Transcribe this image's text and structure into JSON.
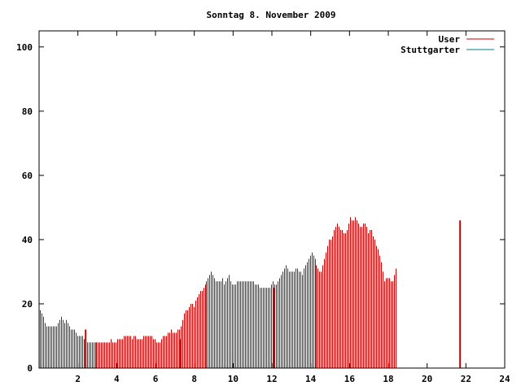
{
  "chart_data": {
    "type": "bar",
    "title": "Sonntag 8. November 2009",
    "xlabel": "",
    "ylabel": "",
    "xlim": [
      0,
      24
    ],
    "ylim": [
      0,
      105
    ],
    "x_ticks": [
      2,
      4,
      6,
      8,
      10,
      12,
      14,
      16,
      18,
      20,
      22,
      24
    ],
    "y_ticks": [
      0,
      20,
      40,
      60,
      80,
      100
    ],
    "legend_position": "top-right",
    "series": [
      {
        "name": "User",
        "color": "#cc0000",
        "x_start": 0.0,
        "x_step": 0.0833,
        "values": [
          18,
          17,
          16,
          14,
          13,
          13,
          13,
          13,
          13,
          13,
          13,
          14,
          15,
          16,
          15,
          14,
          15,
          14,
          13,
          12,
          12,
          12,
          11,
          10,
          10,
          10,
          10,
          9,
          8,
          8,
          8,
          8,
          8,
          8,
          8,
          8,
          8,
          8,
          8,
          8,
          8,
          8,
          8,
          8,
          9,
          8,
          8,
          8,
          9,
          9,
          9,
          9,
          10,
          10,
          10,
          10,
          10,
          9,
          10,
          10,
          9,
          9,
          9,
          9,
          10,
          10,
          10,
          10,
          10,
          10,
          9,
          9,
          8,
          8,
          8,
          9,
          10,
          10,
          10,
          11,
          11,
          12,
          11,
          11,
          11,
          12,
          12,
          13,
          15,
          17,
          18,
          18,
          19,
          20,
          20,
          19,
          21,
          22,
          23,
          24,
          24,
          25,
          26,
          27,
          28,
          29,
          30,
          29,
          28,
          27,
          27,
          27,
          27,
          28,
          26,
          27,
          28,
          29,
          27,
          26,
          26,
          26,
          27,
          27,
          27,
          27,
          27,
          27,
          27,
          27,
          27,
          27,
          27,
          26,
          26,
          26,
          25,
          25,
          25,
          25,
          25,
          25,
          25,
          26,
          27,
          26,
          26,
          27,
          28,
          29,
          30,
          31,
          32,
          31,
          30,
          30,
          30,
          30,
          31,
          31,
          30,
          30,
          29,
          31,
          32,
          33,
          34,
          35,
          36,
          35,
          34,
          32,
          31,
          30,
          30,
          32,
          34,
          36,
          38,
          40,
          40,
          41,
          43,
          44,
          45,
          44,
          43,
          43,
          42,
          42,
          43,
          45,
          47,
          46,
          46,
          47,
          46,
          45,
          44,
          44,
          45,
          45,
          44,
          42,
          43,
          43,
          41,
          40,
          38,
          37,
          35,
          33,
          30,
          27,
          28,
          28,
          28,
          27,
          27,
          29,
          31
        ],
        "markers": [
          {
            "x": 2.4,
            "y": 12
          },
          {
            "x": 7.3,
            "y": 9
          },
          {
            "x": 12.1,
            "y": 25
          },
          {
            "x": 21.7,
            "y": 46
          }
        ]
      },
      {
        "name": "Stuttgarter",
        "color": "#008080",
        "values": []
      }
    ]
  }
}
